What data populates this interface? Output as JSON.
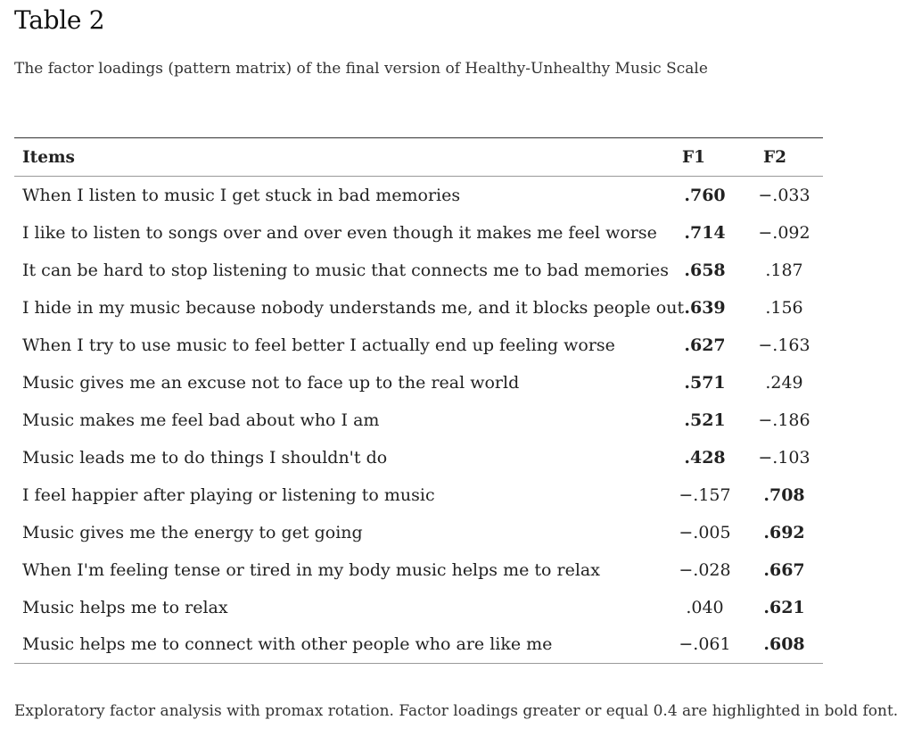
{
  "table": {
    "title": "Table 2",
    "caption": "The factor loadings (pattern matrix) of the final version of Healthy-Unhealthy Music Scale",
    "headers": {
      "items": "Items",
      "f1": "F1",
      "f2": "F2"
    },
    "rows": [
      {
        "item": "When I listen to music I get stuck in bad memories",
        "f1": ".760",
        "f2": "−.033",
        "f1_bold": true,
        "f2_bold": false
      },
      {
        "item": "I like to listen to songs over and over even though it makes me feel worse",
        "f1": ".714",
        "f2": "−.092",
        "f1_bold": true,
        "f2_bold": false
      },
      {
        "item": "It can be hard to stop listening to music that connects me to bad memories",
        "f1": ".658",
        "f2": ".187",
        "f1_bold": true,
        "f2_bold": false
      },
      {
        "item": "I hide in my music because nobody understands me, and it blocks people out",
        "f1": ".639",
        "f2": ".156",
        "f1_bold": true,
        "f2_bold": false
      },
      {
        "item": "When I try to use music to feel better I actually end up feeling worse",
        "f1": ".627",
        "f2": "−.163",
        "f1_bold": true,
        "f2_bold": false
      },
      {
        "item": "Music gives me an excuse not to face up to the real world",
        "f1": ".571",
        "f2": ".249",
        "f1_bold": true,
        "f2_bold": false
      },
      {
        "item": "Music makes me feel bad about who I am",
        "f1": ".521",
        "f2": "−.186",
        "f1_bold": true,
        "f2_bold": false
      },
      {
        "item": "Music leads me to do things I shouldn't do",
        "f1": ".428",
        "f2": "−.103",
        "f1_bold": true,
        "f2_bold": false
      },
      {
        "item": "I feel happier after playing or listening to music",
        "f1": "−.157",
        "f2": ".708",
        "f1_bold": false,
        "f2_bold": true
      },
      {
        "item": "Music gives me the energy to get going",
        "f1": "−.005",
        "f2": ".692",
        "f1_bold": false,
        "f2_bold": true
      },
      {
        "item": "When I'm feeling tense or tired in my body music helps me to relax",
        "f1": "−.028",
        "f2": ".667",
        "f1_bold": false,
        "f2_bold": true
      },
      {
        "item": "Music helps me to relax",
        "f1": ".040",
        "f2": ".621",
        "f1_bold": false,
        "f2_bold": true
      },
      {
        "item": "Music helps me to connect with other people who are like me",
        "f1": "−.061",
        "f2": ".608",
        "f1_bold": false,
        "f2_bold": true
      }
    ],
    "note": "Exploratory factor analysis with promax rotation. Factor loadings greater or equal 0.4 are highlighted in bold font."
  }
}
